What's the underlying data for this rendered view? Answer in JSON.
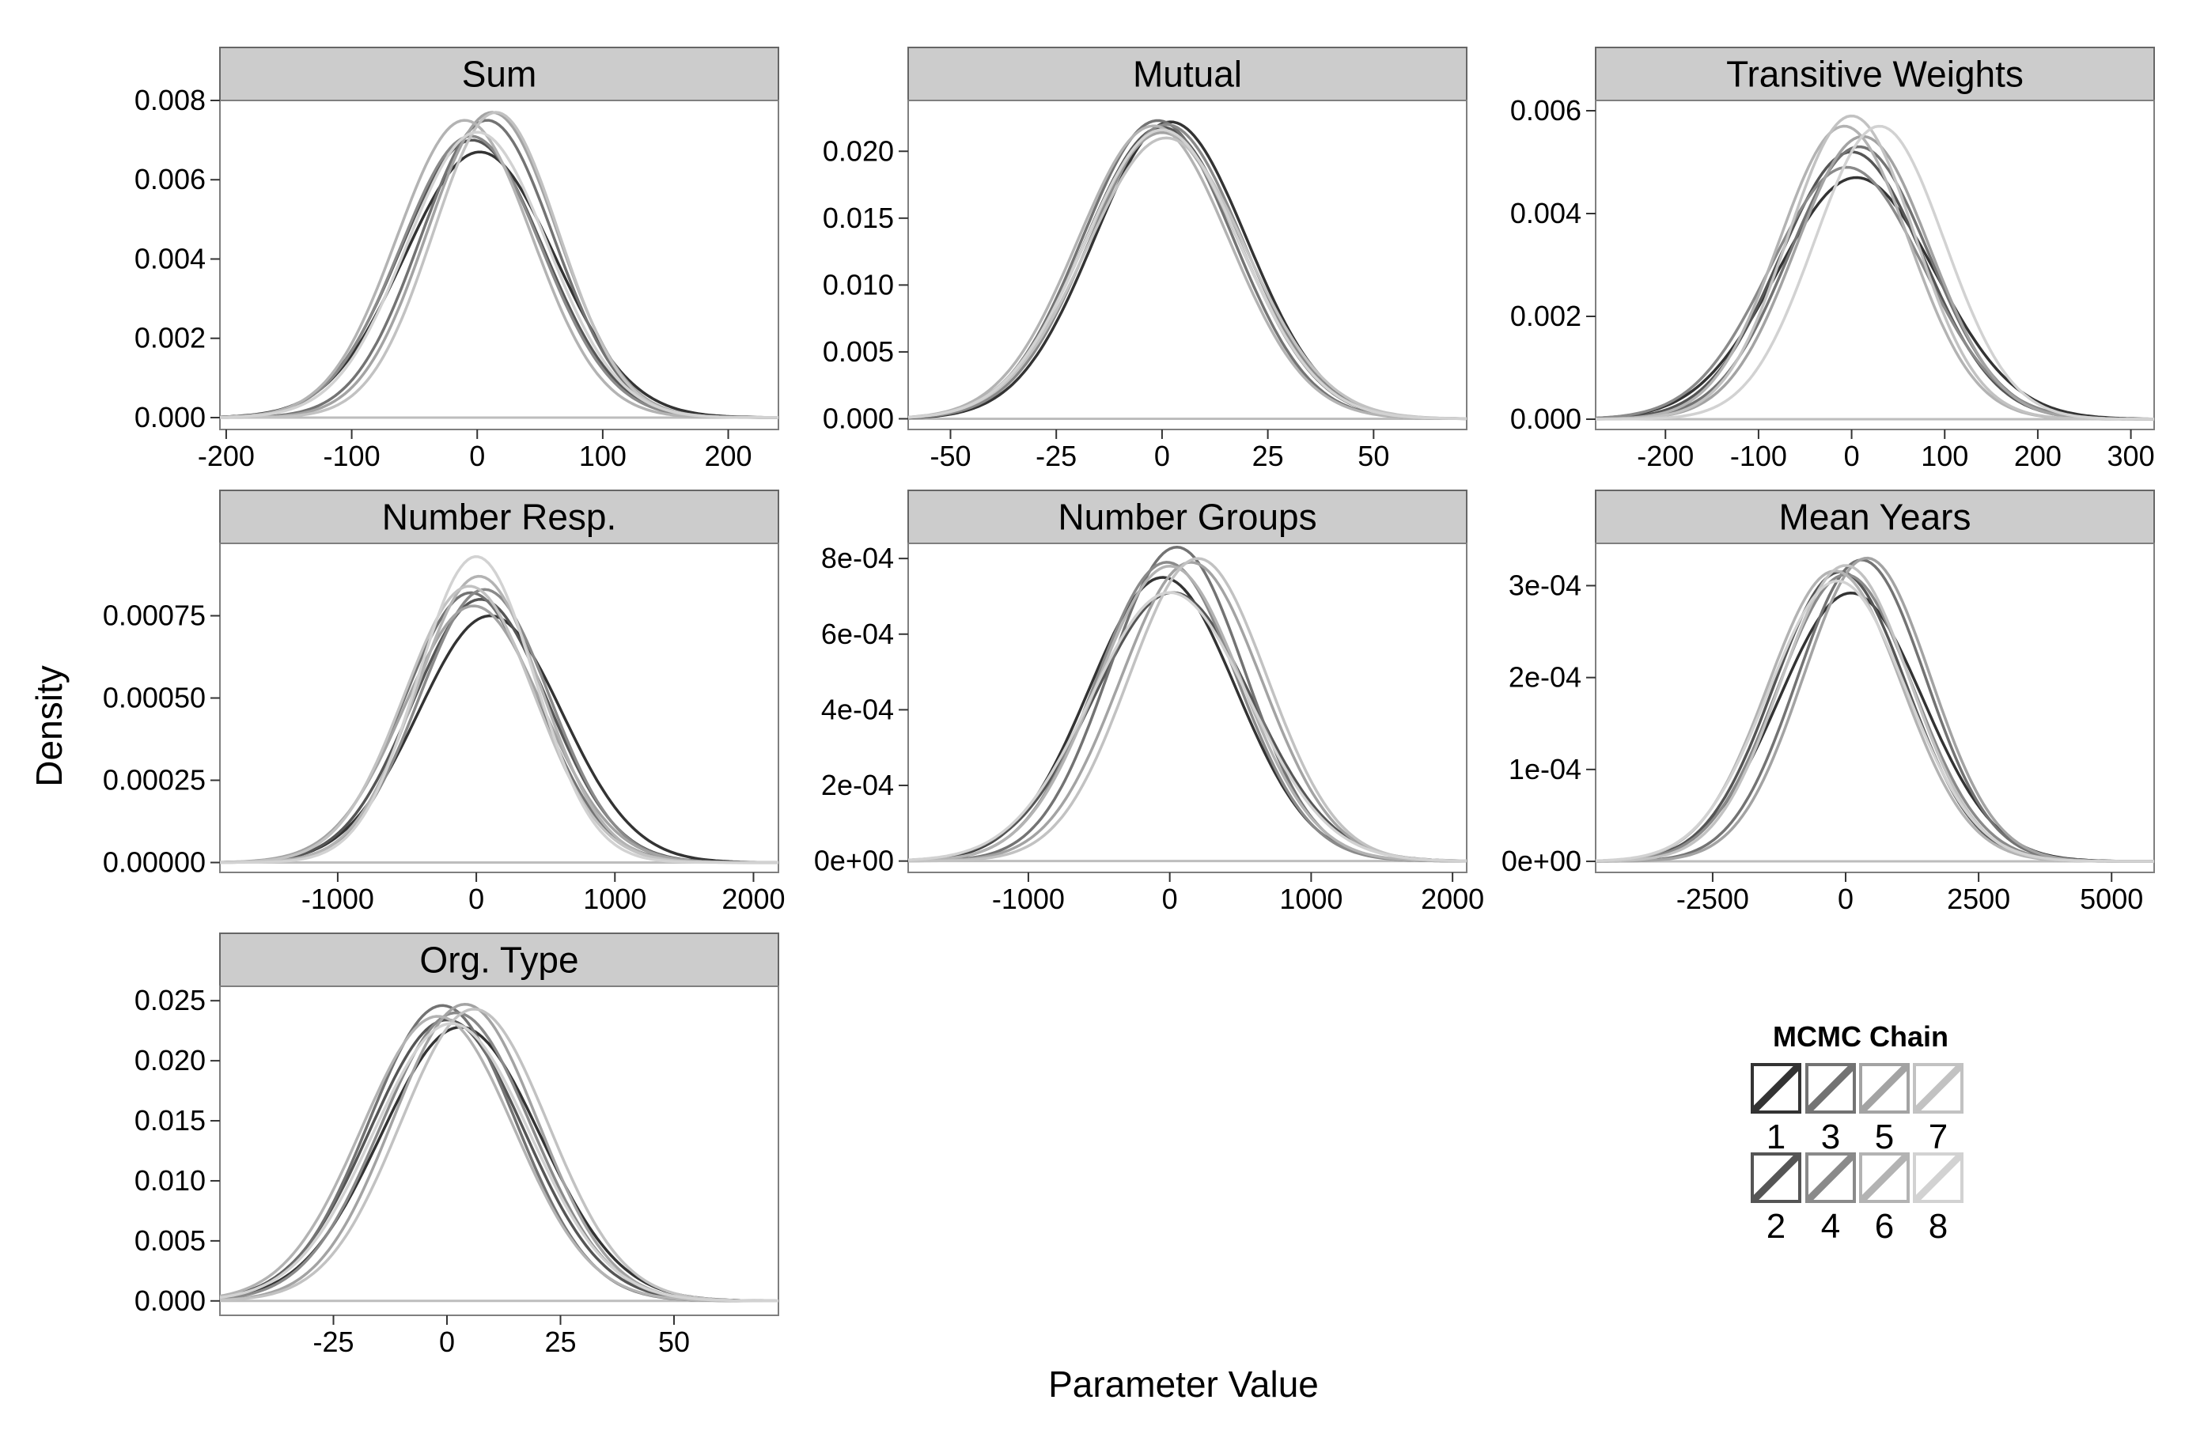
{
  "chart_data": {
    "type": "line",
    "facet_layout": "3x3 grid, facets fill rows left to right",
    "xlabel": "Parameter Value",
    "ylabel": "Density",
    "legend": {
      "title": "MCMC Chain",
      "position": "bottom-right",
      "entries": [
        "1",
        "2",
        "3",
        "4",
        "5",
        "6",
        "7",
        "8"
      ],
      "colors": [
        "#333333",
        "#555555",
        "#737373",
        "#8a8a8a",
        "#a3a3a3",
        "#b3b3b3",
        "#c2c2c2",
        "#d2d2d2"
      ]
    },
    "grid": false,
    "series_note": "Each facet shows 8 kernel density curves, one per MCMC chain; curves are approximated as near-Gaussian with per-chain center, spread and peak.",
    "panels": [
      {
        "title": "Sum",
        "xlim": [
          -205,
          240
        ],
        "ylim": [
          -0.0003,
          0.008
        ],
        "xticks": [
          -200,
          -100,
          0,
          100,
          200
        ],
        "xtick_labels": [
          "-200",
          "-100",
          "0",
          "100",
          "200"
        ],
        "yticks": [
          0,
          0.002,
          0.004,
          0.006,
          0.008
        ],
        "ytick_labels": [
          "0.000",
          "0.002",
          "0.004",
          "0.006",
          "0.008"
        ],
        "series": [
          {
            "chain": "1",
            "center": 2,
            "sd": 60,
            "peak": 0.0067
          },
          {
            "chain": "2",
            "center": -4,
            "sd": 57,
            "peak": 0.007
          },
          {
            "chain": "3",
            "center": 8,
            "sd": 53,
            "peak": 0.0075
          },
          {
            "chain": "4",
            "center": -5,
            "sd": 56,
            "peak": 0.0071
          },
          {
            "chain": "5",
            "center": 12,
            "sd": 52,
            "peak": 0.0077
          },
          {
            "chain": "6",
            "center": -10,
            "sd": 54,
            "peak": 0.0075
          },
          {
            "chain": "7",
            "center": 15,
            "sd": 50,
            "peak": 0.0077
          },
          {
            "chain": "8",
            "center": 0,
            "sd": 56,
            "peak": 0.0072
          }
        ]
      },
      {
        "title": "Mutual",
        "xlim": [
          -60,
          72
        ],
        "ylim": [
          -0.0008,
          0.0238
        ],
        "xticks": [
          -50,
          -25,
          0,
          25,
          50
        ],
        "xtick_labels": [
          "-50",
          "-25",
          "0",
          "25",
          "50"
        ],
        "yticks": [
          0,
          0.005,
          0.01,
          0.015,
          0.02
        ],
        "ytick_labels": [
          "0.000",
          "0.005",
          "0.010",
          "0.015",
          "0.020"
        ],
        "series": [
          {
            "chain": "1",
            "center": 2,
            "sd": 18,
            "peak": 0.0222
          },
          {
            "chain": "2",
            "center": 0,
            "sd": 18.3,
            "peak": 0.0218
          },
          {
            "chain": "3",
            "center": -1,
            "sd": 17.8,
            "peak": 0.0223
          },
          {
            "chain": "4",
            "center": 1,
            "sd": 18.1,
            "peak": 0.022
          },
          {
            "chain": "5",
            "center": 0,
            "sd": 18.5,
            "peak": 0.0214
          },
          {
            "chain": "6",
            "center": -2,
            "sd": 18.0,
            "peak": 0.0219
          },
          {
            "chain": "7",
            "center": 1,
            "sd": 18.8,
            "peak": 0.021
          },
          {
            "chain": "8",
            "center": 0,
            "sd": 18.4,
            "peak": 0.0216
          }
        ]
      },
      {
        "title": "Transitive Weights",
        "xlim": [
          -275,
          325
        ],
        "ylim": [
          -0.0002,
          0.0062
        ],
        "xticks": [
          -200,
          -100,
          0,
          100,
          200,
          300
        ],
        "xtick_labels": [
          "-200",
          "-100",
          "0",
          "100",
          "200",
          "300"
        ],
        "yticks": [
          0,
          0.002,
          0.004,
          0.006
        ],
        "ytick_labels": [
          "0.000",
          "0.002",
          "0.004",
          "0.006"
        ],
        "series": [
          {
            "chain": "1",
            "center": 5,
            "sd": 85,
            "peak": 0.0047
          },
          {
            "chain": "2",
            "center": 0,
            "sd": 77,
            "peak": 0.0052
          },
          {
            "chain": "3",
            "center": 8,
            "sd": 75,
            "peak": 0.0053
          },
          {
            "chain": "4",
            "center": -5,
            "sd": 82,
            "peak": 0.0049
          },
          {
            "chain": "5",
            "center": 12,
            "sd": 72,
            "peak": 0.0055
          },
          {
            "chain": "6",
            "center": -8,
            "sd": 70,
            "peak": 0.0057
          },
          {
            "chain": "7",
            "center": 0,
            "sd": 68,
            "peak": 0.0059
          },
          {
            "chain": "8",
            "center": 30,
            "sd": 70,
            "peak": 0.0057
          }
        ]
      },
      {
        "title": "Number Resp.",
        "xlim": [
          -1850,
          2180
        ],
        "ylim": [
          -3e-05,
          0.00097
        ],
        "xticks": [
          -1000,
          0,
          1000,
          2000
        ],
        "xtick_labels": [
          "-1000",
          "0",
          "1000",
          "2000"
        ],
        "yticks": [
          0,
          0.00025,
          0.0005,
          0.00075
        ],
        "ytick_labels": [
          "0.00000",
          "0.00025",
          "0.00050",
          "0.00075"
        ],
        "series": [
          {
            "chain": "1",
            "center": 100,
            "sd": 520,
            "peak": 0.00075
          },
          {
            "chain": "2",
            "center": 30,
            "sd": 490,
            "peak": 0.0008
          },
          {
            "chain": "3",
            "center": -40,
            "sd": 480,
            "peak": 0.00082
          },
          {
            "chain": "4",
            "center": 60,
            "sd": 470,
            "peak": 0.00083
          },
          {
            "chain": "5",
            "center": -20,
            "sd": 500,
            "peak": 0.00078
          },
          {
            "chain": "6",
            "center": 20,
            "sd": 450,
            "peak": 0.00087
          },
          {
            "chain": "7",
            "center": -50,
            "sd": 470,
            "peak": 0.00084
          },
          {
            "chain": "8",
            "center": 0,
            "sd": 420,
            "peak": 0.00093
          }
        ]
      },
      {
        "title": "Number Groups",
        "xlim": [
          -1850,
          2100
        ],
        "ylim": [
          -3e-05,
          0.00084
        ],
        "xticks": [
          -1000,
          0,
          1000,
          2000
        ],
        "xtick_labels": [
          "-1000",
          "0",
          "1000",
          "2000"
        ],
        "yticks": [
          0,
          0.0002,
          0.0004,
          0.0006,
          0.0008
        ],
        "ytick_labels": [
          "0e+00",
          "2e-04",
          "4e-04",
          "6e-04",
          "8e-04"
        ],
        "series": [
          {
            "chain": "1",
            "center": -50,
            "sd": 520,
            "peak": 0.00075
          },
          {
            "chain": "2",
            "center": 20,
            "sd": 560,
            "peak": 0.00071
          },
          {
            "chain": "3",
            "center": 50,
            "sd": 480,
            "peak": 0.00083
          },
          {
            "chain": "4",
            "center": -20,
            "sd": 500,
            "peak": 0.00079
          },
          {
            "chain": "5",
            "center": 150,
            "sd": 500,
            "peak": 0.00079
          },
          {
            "chain": "6",
            "center": 0,
            "sd": 510,
            "peak": 0.00078
          },
          {
            "chain": "7",
            "center": 200,
            "sd": 490,
            "peak": 0.0008
          },
          {
            "chain": "8",
            "center": 0,
            "sd": 560,
            "peak": 0.00071
          }
        ]
      },
      {
        "title": "Mean Years",
        "xlim": [
          -4700,
          5800
        ],
        "ylim": [
          -1.2e-05,
          0.000346
        ],
        "xticks": [
          -2500,
          0,
          2500,
          5000
        ],
        "xtick_labels": [
          "-2500",
          "0",
          "2500",
          "5000"
        ],
        "yticks": [
          0,
          0.0001,
          0.0002,
          0.0003
        ],
        "ytick_labels": [
          "0e+00",
          "1e-04",
          "2e-04",
          "3e-04"
        ],
        "series": [
          {
            "chain": "1",
            "center": 100,
            "sd": 1350,
            "peak": 0.000292
          },
          {
            "chain": "2",
            "center": -100,
            "sd": 1250,
            "peak": 0.000315
          },
          {
            "chain": "3",
            "center": 300,
            "sd": 1210,
            "peak": 0.000328
          },
          {
            "chain": "4",
            "center": 0,
            "sd": 1270,
            "peak": 0.000312
          },
          {
            "chain": "5",
            "center": 400,
            "sd": 1200,
            "peak": 0.00033
          },
          {
            "chain": "6",
            "center": -200,
            "sd": 1260,
            "peak": 0.000316
          },
          {
            "chain": "7",
            "center": 0,
            "sd": 1220,
            "peak": 0.000322
          },
          {
            "chain": "8",
            "center": -150,
            "sd": 1300,
            "peak": 0.000305
          }
        ]
      },
      {
        "title": "Org. Type",
        "xlim": [
          -50,
          73
        ],
        "ylim": [
          -0.0012,
          0.0262
        ],
        "xticks": [
          -25,
          0,
          25,
          50
        ],
        "xtick_labels": [
          "-25",
          "0",
          "25",
          "50"
        ],
        "yticks": [
          0,
          0.005,
          0.01,
          0.015,
          0.02,
          0.025
        ],
        "ytick_labels": [
          "0.000",
          "0.005",
          "0.010",
          "0.015",
          "0.020",
          "0.025"
        ],
        "series": [
          {
            "chain": "1",
            "center": 3,
            "sd": 17.5,
            "peak": 0.0228
          },
          {
            "chain": "2",
            "center": 0,
            "sd": 17.0,
            "peak": 0.0234
          },
          {
            "chain": "3",
            "center": -1,
            "sd": 16.2,
            "peak": 0.0246
          },
          {
            "chain": "4",
            "center": 2,
            "sd": 16.6,
            "peak": 0.024
          },
          {
            "chain": "5",
            "center": 4,
            "sd": 16.0,
            "peak": 0.0247
          },
          {
            "chain": "6",
            "center": -2,
            "sd": 16.8,
            "peak": 0.0237
          },
          {
            "chain": "7",
            "center": 6,
            "sd": 16.3,
            "peak": 0.0243
          },
          {
            "chain": "8",
            "center": 1,
            "sd": 17.2,
            "peak": 0.0231
          }
        ]
      }
    ]
  }
}
